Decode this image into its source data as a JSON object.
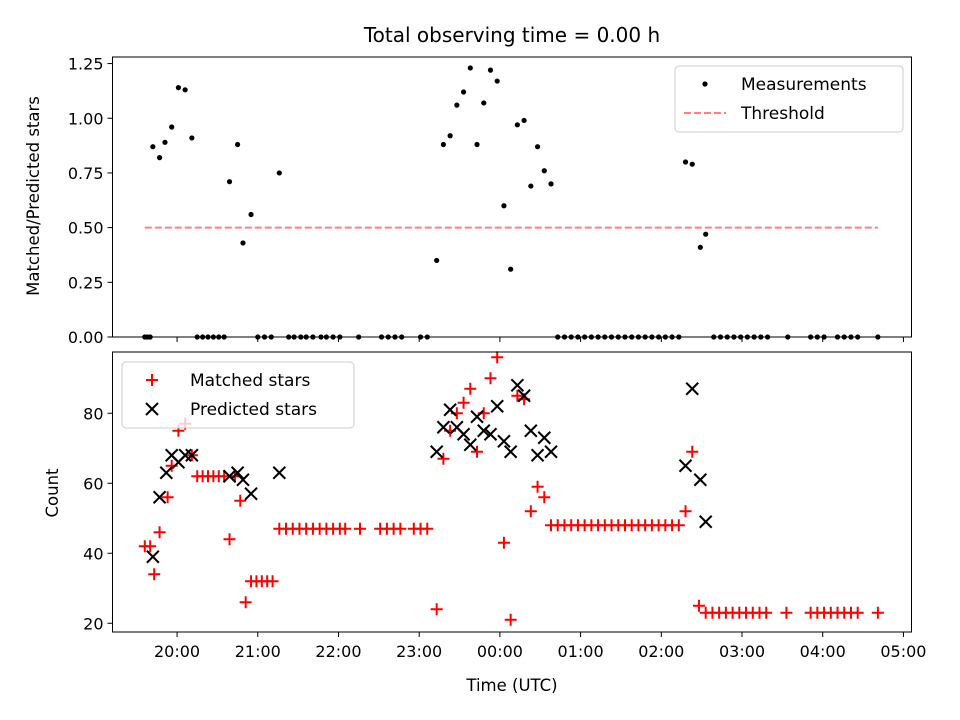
{
  "colors": {
    "matched": "#ff0000",
    "predicted": "#000000",
    "measurements": "#000000",
    "threshold": "#ff8080"
  },
  "chart_data": [
    {
      "type": "scatter",
      "title": "Total observing time = 0.00 h",
      "ylabel": "Matched/Predicted stars",
      "xlabel": "",
      "xlim": [
        "19:12",
        "05:06"
      ],
      "ylim": [
        0,
        1.28
      ],
      "yticks": [
        "0.00",
        "0.25",
        "0.50",
        "0.75",
        "1.00",
        "1.25"
      ],
      "legend": "top-right",
      "grid": false,
      "series": [
        {
          "name": "Measurements",
          "marker": "dot",
          "points": [
            [
              "19:36",
              0
            ],
            [
              "19:38",
              0
            ],
            [
              "19:40",
              0
            ],
            [
              "19:42",
              0.87
            ],
            [
              "19:47",
              0.82
            ],
            [
              "19:51",
              0.89
            ],
            [
              "19:56",
              0.96
            ],
            [
              "20:01",
              1.14
            ],
            [
              "20:06",
              1.13
            ],
            [
              "20:11",
              0.91
            ],
            [
              "20:15",
              0
            ],
            [
              "20:19",
              0
            ],
            [
              "20:23",
              0
            ],
            [
              "20:27",
              0
            ],
            [
              "20:31",
              0
            ],
            [
              "20:35",
              0
            ],
            [
              "20:39",
              0.71
            ],
            [
              "20:45",
              0.88
            ],
            [
              "20:49",
              0.43
            ],
            [
              "20:55",
              0.56
            ],
            [
              "21:00",
              0
            ],
            [
              "21:05",
              0
            ],
            [
              "21:10",
              0
            ],
            [
              "21:16",
              0.75
            ],
            [
              "21:23",
              0
            ],
            [
              "21:27",
              0
            ],
            [
              "21:32",
              0
            ],
            [
              "21:36",
              0
            ],
            [
              "21:41",
              0
            ],
            [
              "21:47",
              0
            ],
            [
              "21:51",
              0
            ],
            [
              "21:56",
              0
            ],
            [
              "22:01",
              0
            ],
            [
              "22:15",
              0
            ],
            [
              "22:32",
              0
            ],
            [
              "22:37",
              0
            ],
            [
              "22:42",
              0
            ],
            [
              "22:47",
              0
            ],
            [
              "23:01",
              0
            ],
            [
              "23:06",
              0
            ],
            [
              "23:13",
              0.35
            ],
            [
              "23:18",
              0.88
            ],
            [
              "23:23",
              0.92
            ],
            [
              "23:28",
              1.06
            ],
            [
              "23:33",
              1.12
            ],
            [
              "23:38",
              1.23
            ],
            [
              "23:43",
              0.88
            ],
            [
              "23:48",
              1.07
            ],
            [
              "23:53",
              1.22
            ],
            [
              "23:58",
              1.17
            ],
            [
              "00:03",
              0.6
            ],
            [
              "00:08",
              0.31
            ],
            [
              "00:13",
              0.97
            ],
            [
              "00:18",
              0.99
            ],
            [
              "00:23",
              0.69
            ],
            [
              "00:28",
              0.87
            ],
            [
              "00:33",
              0.76
            ],
            [
              "00:38",
              0.7
            ],
            [
              "00:43",
              0
            ],
            [
              "00:48",
              0
            ],
            [
              "00:53",
              0
            ],
            [
              "00:58",
              0
            ],
            [
              "01:03",
              0
            ],
            [
              "01:08",
              0
            ],
            [
              "01:13",
              0
            ],
            [
              "01:18",
              0
            ],
            [
              "01:23",
              0
            ],
            [
              "01:28",
              0
            ],
            [
              "01:33",
              0
            ],
            [
              "01:38",
              0
            ],
            [
              "01:43",
              0
            ],
            [
              "01:48",
              0
            ],
            [
              "01:53",
              0
            ],
            [
              "01:58",
              0
            ],
            [
              "02:03",
              0
            ],
            [
              "02:08",
              0
            ],
            [
              "02:13",
              0
            ],
            [
              "02:18",
              0.8
            ],
            [
              "02:23",
              0.79
            ],
            [
              "02:29",
              0.41
            ],
            [
              "02:33",
              0.47
            ],
            [
              "02:39",
              0
            ],
            [
              "02:44",
              0
            ],
            [
              "02:49",
              0
            ],
            [
              "02:54",
              0
            ],
            [
              "02:59",
              0
            ],
            [
              "03:04",
              0
            ],
            [
              "03:09",
              0
            ],
            [
              "03:14",
              0
            ],
            [
              "03:19",
              0
            ],
            [
              "03:34",
              0
            ],
            [
              "03:51",
              0
            ],
            [
              "03:56",
              0
            ],
            [
              "04:01",
              0
            ],
            [
              "04:11",
              0
            ],
            [
              "04:16",
              0
            ],
            [
              "04:21",
              0
            ],
            [
              "04:26",
              0
            ],
            [
              "04:41",
              0
            ]
          ]
        },
        {
          "name": "Threshold",
          "marker": "dashed-line",
          "points": [
            [
              "19:36",
              0.5
            ],
            [
              "04:41",
              0.5
            ]
          ]
        }
      ]
    },
    {
      "type": "scatter",
      "title": "",
      "ylabel": "Count",
      "xlabel": "Time (UTC)",
      "xlim": [
        "19:12",
        "05:06"
      ],
      "ylim": [
        17.5,
        97.5
      ],
      "yticks": [
        "20",
        "40",
        "60",
        "80"
      ],
      "xticks": [
        "20:00",
        "21:00",
        "22:00",
        "23:00",
        "00:00",
        "01:00",
        "02:00",
        "03:00",
        "04:00",
        "05:00"
      ],
      "legend": "top-left",
      "grid": false,
      "series": [
        {
          "name": "Matched stars",
          "marker": "plus",
          "points": [
            [
              "19:36",
              42
            ],
            [
              "19:40",
              42
            ],
            [
              "19:43",
              34
            ],
            [
              "19:47",
              46
            ],
            [
              "19:53",
              56
            ],
            [
              "19:56",
              65
            ],
            [
              "20:01",
              75
            ],
            [
              "20:06",
              77
            ],
            [
              "20:11",
              68
            ],
            [
              "20:15",
              62
            ],
            [
              "20:19",
              62
            ],
            [
              "20:23",
              62
            ],
            [
              "20:27",
              62
            ],
            [
              "20:31",
              62
            ],
            [
              "20:35",
              62
            ],
            [
              "20:39",
              44
            ],
            [
              "20:43",
              62
            ],
            [
              "20:47",
              55
            ],
            [
              "20:51",
              26
            ],
            [
              "20:55",
              32
            ],
            [
              "20:59",
              32
            ],
            [
              "21:03",
              32
            ],
            [
              "21:07",
              32
            ],
            [
              "21:11",
              32
            ],
            [
              "21:16",
              47
            ],
            [
              "21:21",
              47
            ],
            [
              "21:26",
              47
            ],
            [
              "21:31",
              47
            ],
            [
              "21:36",
              47
            ],
            [
              "21:41",
              47
            ],
            [
              "21:46",
              47
            ],
            [
              "21:51",
              47
            ],
            [
              "21:56",
              47
            ],
            [
              "22:01",
              47
            ],
            [
              "22:05",
              47
            ],
            [
              "22:16",
              47
            ],
            [
              "22:31",
              47
            ],
            [
              "22:36",
              47
            ],
            [
              "22:41",
              47
            ],
            [
              "22:46",
              47
            ],
            [
              "22:56",
              47
            ],
            [
              "23:01",
              47
            ],
            [
              "23:06",
              47
            ],
            [
              "23:13",
              24
            ],
            [
              "23:18",
              67
            ],
            [
              "23:23",
              75
            ],
            [
              "23:28",
              80
            ],
            [
              "23:33",
              83
            ],
            [
              "23:38",
              87
            ],
            [
              "23:43",
              69
            ],
            [
              "23:48",
              80
            ],
            [
              "23:53",
              90
            ],
            [
              "23:58",
              96
            ],
            [
              "00:03",
              43
            ],
            [
              "00:08",
              21
            ],
            [
              "00:13",
              85
            ],
            [
              "00:18",
              84
            ],
            [
              "00:23",
              52
            ],
            [
              "00:28",
              59
            ],
            [
              "00:33",
              56
            ],
            [
              "00:38",
              48
            ],
            [
              "00:43",
              48
            ],
            [
              "00:48",
              48
            ],
            [
              "00:53",
              48
            ],
            [
              "00:58",
              48
            ],
            [
              "01:03",
              48
            ],
            [
              "01:08",
              48
            ],
            [
              "01:13",
              48
            ],
            [
              "01:18",
              48
            ],
            [
              "01:23",
              48
            ],
            [
              "01:28",
              48
            ],
            [
              "01:33",
              48
            ],
            [
              "01:38",
              48
            ],
            [
              "01:43",
              48
            ],
            [
              "01:48",
              48
            ],
            [
              "01:53",
              48
            ],
            [
              "01:58",
              48
            ],
            [
              "02:03",
              48
            ],
            [
              "02:08",
              48
            ],
            [
              "02:13",
              48
            ],
            [
              "02:18",
              52
            ],
            [
              "02:23",
              69
            ],
            [
              "02:28",
              25
            ],
            [
              "02:33",
              23
            ],
            [
              "02:38",
              23
            ],
            [
              "02:43",
              23
            ],
            [
              "02:48",
              23
            ],
            [
              "02:53",
              23
            ],
            [
              "02:58",
              23
            ],
            [
              "03:03",
              23
            ],
            [
              "03:08",
              23
            ],
            [
              "03:13",
              23
            ],
            [
              "03:18",
              23
            ],
            [
              "03:33",
              23
            ],
            [
              "03:51",
              23
            ],
            [
              "03:56",
              23
            ],
            [
              "04:01",
              23
            ],
            [
              "04:06",
              23
            ],
            [
              "04:11",
              23
            ],
            [
              "04:16",
              23
            ],
            [
              "04:21",
              23
            ],
            [
              "04:26",
              23
            ],
            [
              "04:41",
              23
            ]
          ]
        },
        {
          "name": "Predicted stars",
          "marker": "cross",
          "points": [
            [
              "19:42",
              39
            ],
            [
              "19:47",
              56
            ],
            [
              "19:52",
              63
            ],
            [
              "19:56",
              68
            ],
            [
              "20:01",
              66
            ],
            [
              "20:06",
              68
            ],
            [
              "20:11",
              68
            ],
            [
              "20:39",
              62
            ],
            [
              "20:45",
              63
            ],
            [
              "20:49",
              61
            ],
            [
              "20:55",
              57
            ],
            [
              "21:16",
              63
            ],
            [
              "23:13",
              69
            ],
            [
              "23:18",
              76
            ],
            [
              "23:23",
              81
            ],
            [
              "23:28",
              76
            ],
            [
              "23:33",
              74
            ],
            [
              "23:38",
              71
            ],
            [
              "23:43",
              79
            ],
            [
              "23:48",
              75
            ],
            [
              "23:53",
              74
            ],
            [
              "23:58",
              82
            ],
            [
              "00:03",
              72
            ],
            [
              "00:08",
              69
            ],
            [
              "00:13",
              88
            ],
            [
              "00:18",
              85
            ],
            [
              "00:23",
              75
            ],
            [
              "00:28",
              68
            ],
            [
              "00:33",
              73
            ],
            [
              "00:38",
              69
            ],
            [
              "02:18",
              65
            ],
            [
              "02:23",
              87
            ],
            [
              "02:29",
              61
            ],
            [
              "02:33",
              49
            ]
          ]
        }
      ]
    }
  ]
}
